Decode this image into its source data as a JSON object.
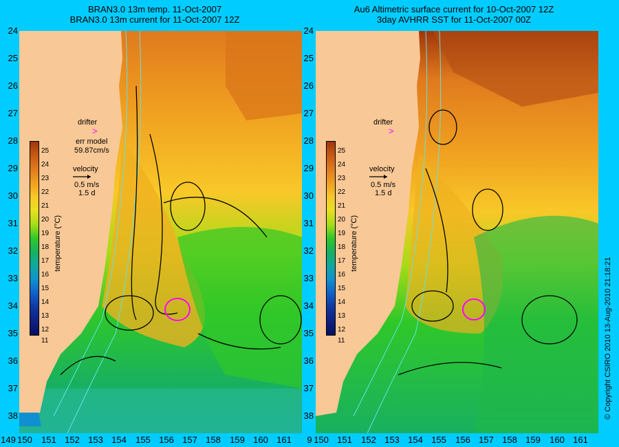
{
  "titles": {
    "left_line1": "BRAN3.0 13m temp. 11-Oct-2007",
    "left_line2": "BRAN3.0 13m current for 11-Oct-2007 12Z",
    "right_line1": "Au6 Altimetric surface current for 10-Oct-2007 12Z",
    "right_line2": "3day AVHRR SST for 11-Oct-2007 00Z"
  },
  "axes": {
    "y_ticks": [
      "24",
      "25",
      "26",
      "27",
      "28",
      "29",
      "30",
      "31",
      "32",
      "33",
      "34",
      "35",
      "36",
      "37",
      "38"
    ],
    "x_ticks_left": [
      "149",
      "150",
      "151",
      "152",
      "153",
      "154",
      "155",
      "156",
      "157",
      "158",
      "159",
      "160",
      "161"
    ],
    "x_ticks_right": [
      "9",
      "150",
      "151",
      "152",
      "153",
      "154",
      "155",
      "156",
      "157",
      "158",
      "159",
      "160",
      "161"
    ]
  },
  "left_panel": {
    "drifter_label": "drifter",
    "err_model_label": "err model",
    "err_value": "59.87cm/s",
    "velocity_label": "velocity",
    "velocity_scale": "0.5 m/s",
    "velocity_days": "1.5 d"
  },
  "right_panel": {
    "drifter_label": "drifter",
    "velocity_label": "velocity",
    "velocity_scale": "0.5 m/s",
    "velocity_days": "1.5 d"
  },
  "colorbar": {
    "ticks": [
      "25",
      "24",
      "23",
      "22",
      "21",
      "20",
      "19",
      "18",
      "17",
      "16",
      "15",
      "14",
      "13",
      "12",
      "11"
    ],
    "unit_label": "temperature (°C)",
    "colors": [
      "#a0360a",
      "#c85a14",
      "#e07a1e",
      "#f0a020",
      "#f8c828",
      "#e8e020",
      "#a8dc18",
      "#30c828",
      "#18b060",
      "#10a8a0",
      "#1090d0",
      "#1060c8",
      "#1038a0",
      "#102080",
      "#081060"
    ]
  },
  "credit": "© Copyright CSIRO 2010   13-Aug-2010 21:18:21",
  "colors": {
    "background": "#00ccff",
    "land": "#f8c896",
    "drifter_marker": "#ff00ff",
    "contour": "#66e0e0"
  }
}
